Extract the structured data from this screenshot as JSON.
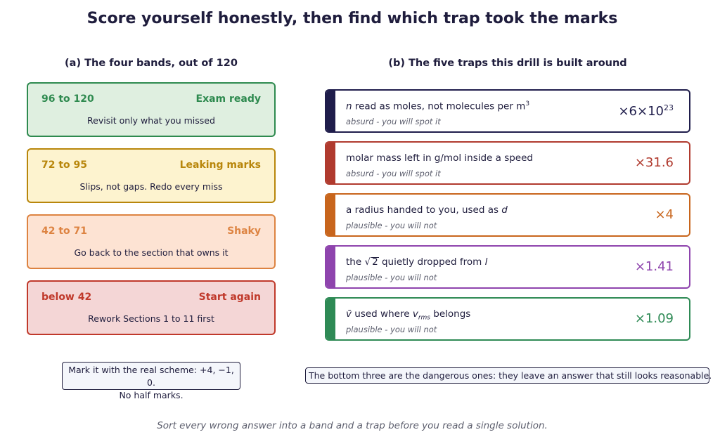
{
  "title": "Score yourself honestly, then find which trap took the marks",
  "left": {
    "heading": "(a) The four bands, out of 120",
    "bands": [
      {
        "range": "96 to 120",
        "label": "Exam ready",
        "advice": "Revisit only what you missed",
        "color": "#2e8a4f",
        "fill": "#dfefe0"
      },
      {
        "range": "72 to 95",
        "label": "Leaking marks",
        "advice": "Slips, not gaps. Redo every miss",
        "color": "#b8860b",
        "fill": "#fdf3cf"
      },
      {
        "range": "42 to 71",
        "label": "Shaky",
        "advice": "Go back to the section that owns it",
        "color": "#dd8341",
        "fill": "#fde3d3"
      },
      {
        "range": "below 42",
        "label": "Start again",
        "advice": "Rework Sections 1 to 11 first",
        "color": "#c0392b",
        "fill": "#f4d6d6"
      }
    ],
    "note_line1": "Mark it with the real scheme: +4, −1, 0.",
    "note_line2": "No half marks."
  },
  "right": {
    "heading": "(b) The five traps this drill is built around",
    "traps": [
      {
        "desc_pre": "",
        "desc_var": "n",
        "desc_post": " read as moles, not molecules per m",
        "desc_sup": "3",
        "verdict": "absurd - you will spot it",
        "factor": "×6×10",
        "factor_sup": "23",
        "color": "#1f1d4b"
      },
      {
        "desc": "molar mass left in g/mol inside a speed",
        "verdict": "absurd - you will spot it",
        "factor": "×31.6",
        "color": "#b03a2e"
      },
      {
        "desc_pre": "a radius handed to you, used as ",
        "desc_var": "d",
        "verdict": "plausible - you will not",
        "factor": "×4",
        "color": "#c8651c"
      },
      {
        "desc_pre": "the ",
        "desc_root": "2",
        "desc_mid": " quietly dropped from ",
        "desc_var": "l",
        "verdict": "plausible - you will not",
        "factor": "×1.41",
        "color": "#8e44ad"
      },
      {
        "desc_var": "v̄",
        "desc_mid": " used where ",
        "desc_var2": "v",
        "desc_sub": "rms",
        "desc_post": " belongs",
        "verdict": "plausible - you will not",
        "factor": "×1.09",
        "color": "#2e8a55"
      }
    ],
    "note": "The bottom three are the dangerous ones: they leave an answer that still looks reasonable."
  },
  "footer": "Sort every wrong answer into a band and a trap before you read a single solution."
}
